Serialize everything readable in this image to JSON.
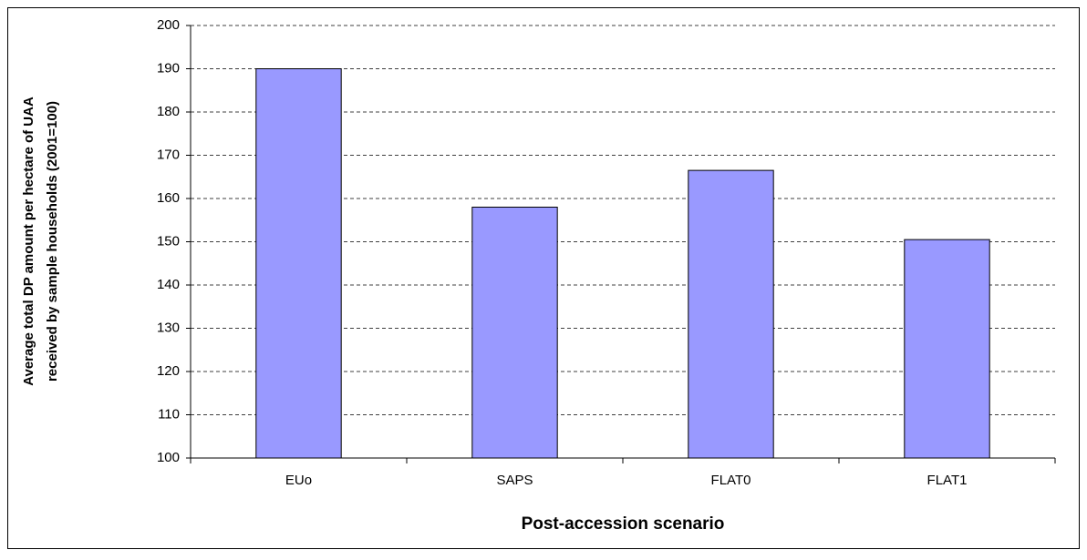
{
  "chart_data": {
    "type": "bar",
    "xlabel": "Post-accession scenario",
    "ylabel": [
      "Average total DP amount per hectare of UAA",
      "received by sample households (2001=100)"
    ],
    "categories": [
      "EUo",
      "SAPS",
      "FLAT0",
      "FLAT1"
    ],
    "values": [
      190,
      158,
      166.5,
      150.5
    ],
    "color": "#9999ff",
    "ylim": [
      100,
      200
    ],
    "yticks": [
      100,
      110,
      120,
      130,
      140,
      150,
      160,
      170,
      180,
      190,
      200
    ],
    "grid": true
  }
}
